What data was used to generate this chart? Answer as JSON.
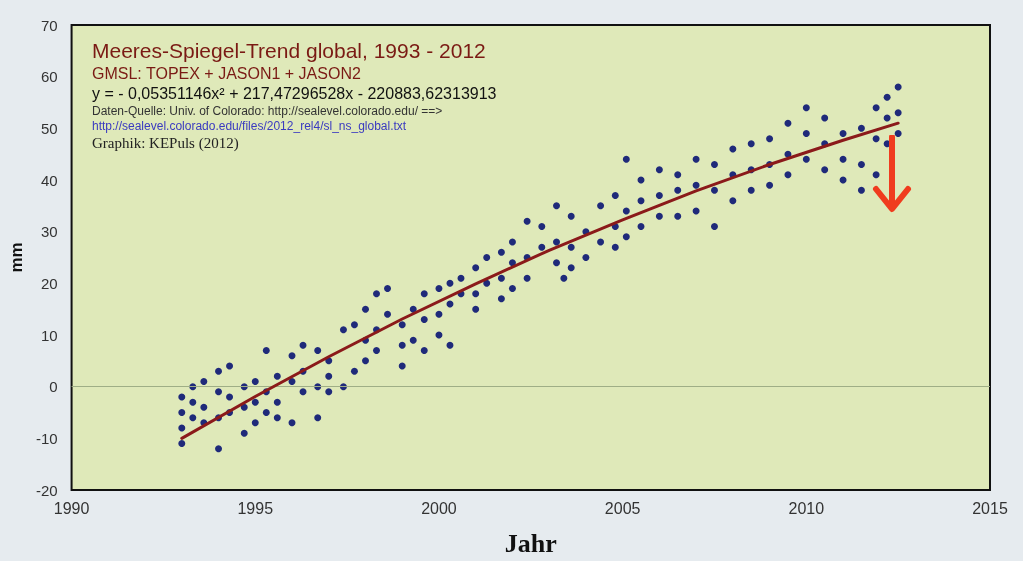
{
  "chart_data": {
    "type": "scatter",
    "title": "Meeres-Spiegel-Trend global, 1993 - 2012",
    "subtitle": "GMSL: TOPEX + JASON1 + JASON2",
    "xlabel": "Jahr",
    "ylabel": "mm",
    "annotations": [
      "y =  - 0,05351146x² + 217,47296528x - 220883,62313913",
      "Daten-Quelle: Univ. of Colorado: http://sealevel.colorado.edu/ ==>",
      "http://sealevel.colorado.edu/files/2012_rel4/sl_ns_global.txt",
      "Graphik: KEPuls (2012)"
    ],
    "xlim": [
      1990,
      2015
    ],
    "xticks": [
      1990,
      1995,
      2000,
      2005,
      2010,
      2015
    ],
    "ylim": [
      -20,
      70
    ],
    "yticks": [
      -20,
      -10,
      0,
      10,
      20,
      30,
      40,
      50,
      60,
      70
    ],
    "ref_lines": [
      {
        "axis": "y",
        "value": 0,
        "color": "#9fae86"
      }
    ],
    "grid": false,
    "marker": "circle",
    "series": [
      {
        "color": "#1f2a7a",
        "x": [
          1993.0,
          1993.0,
          1993.0,
          1993.0,
          1993.3,
          1993.3,
          1993.3,
          1993.6,
          1993.6,
          1993.6,
          1994.0,
          1994.0,
          1994.0,
          1994.0,
          1994.3,
          1994.3,
          1994.3,
          1994.7,
          1994.7,
          1994.7,
          1995.0,
          1995.0,
          1995.0,
          1995.3,
          1995.3,
          1995.3,
          1995.6,
          1995.6,
          1995.6,
          1996.0,
          1996.0,
          1996.0,
          1996.3,
          1996.3,
          1996.3,
          1996.7,
          1996.7,
          1996.7,
          1997.0,
          1997.0,
          1997.0,
          1997.4,
          1997.4,
          1997.7,
          1997.7,
          1998.0,
          1998.0,
          1998.0,
          1998.3,
          1998.3,
          1998.3,
          1998.6,
          1998.6,
          1999.0,
          1999.0,
          1999.0,
          1999.3,
          1999.3,
          1999.6,
          1999.6,
          1999.6,
          2000.0,
          2000.0,
          2000.0,
          2000.3,
          2000.3,
          2000.3,
          2000.6,
          2000.6,
          2001.0,
          2001.0,
          2001.0,
          2001.3,
          2001.3,
          2001.7,
          2001.7,
          2001.7,
          2002.0,
          2002.0,
          2002.0,
          2002.4,
          2002.4,
          2002.4,
          2002.8,
          2002.8,
          2003.2,
          2003.2,
          2003.2,
          2003.4,
          2003.6,
          2003.6,
          2003.6,
          2004.0,
          2004.0,
          2004.4,
          2004.4,
          2004.8,
          2004.8,
          2004.8,
          2005.1,
          2005.1,
          2005.1,
          2005.5,
          2005.5,
          2005.5,
          2006.0,
          2006.0,
          2006.0,
          2006.5,
          2006.5,
          2006.5,
          2007.0,
          2007.0,
          2007.0,
          2007.5,
          2007.5,
          2007.5,
          2008.0,
          2008.0,
          2008.0,
          2008.5,
          2008.5,
          2008.5,
          2009.0,
          2009.0,
          2009.0,
          2009.5,
          2009.5,
          2009.5,
          2010.0,
          2010.0,
          2010.0,
          2010.5,
          2010.5,
          2010.5,
          2011.0,
          2011.0,
          2011.0,
          2011.5,
          2011.5,
          2011.5,
          2011.9,
          2011.9,
          2011.9,
          2012.2,
          2012.2,
          2012.2,
          2012.5,
          2012.5,
          2012.5
        ],
        "values": [
          -11,
          -8,
          -5,
          -2,
          -6,
          0,
          -3,
          1,
          -4,
          -7,
          3,
          -1,
          -6,
          -12,
          4,
          -2,
          -5,
          0,
          -4,
          -9,
          -3,
          -7,
          1,
          7,
          -1,
          -5,
          2,
          -6,
          -3,
          6,
          1,
          -7,
          3,
          8,
          -1,
          7,
          0,
          -6,
          5,
          2,
          -1,
          11,
          0,
          12,
          3,
          15,
          9,
          5,
          18,
          11,
          7,
          19,
          14,
          12,
          8,
          4,
          15,
          9,
          18,
          13,
          7,
          19,
          14,
          10,
          20,
          16,
          8,
          21,
          18,
          23,
          18,
          15,
          25,
          20,
          26,
          21,
          17,
          28,
          24,
          19,
          32,
          25,
          21,
          31,
          27,
          35,
          28,
          24,
          21,
          33,
          27,
          23,
          30,
          25,
          35,
          28,
          37,
          31,
          27,
          44,
          34,
          29,
          40,
          36,
          31,
          42,
          37,
          33,
          41,
          38,
          33,
          44,
          39,
          34,
          43,
          38,
          31,
          46,
          41,
          36,
          47,
          42,
          38,
          48,
          43,
          39,
          51,
          45,
          41,
          54,
          49,
          44,
          52,
          47,
          42,
          49,
          44,
          40,
          50,
          43,
          38,
          54,
          48,
          41,
          56,
          52,
          47,
          58,
          53,
          49
        ]
      },
      {
        "type": "line",
        "color": "#8b1a1a",
        "marker": "none",
        "x": [
          1993,
          1995,
          1997,
          1999,
          2001,
          2003,
          2005,
          2007,
          2009,
          2011,
          2012.5
        ],
        "values": [
          -10,
          -1.9,
          5.8,
          13.1,
          19.9,
          26.4,
          32.3,
          37.9,
          43.0,
          47.7,
          51.0
        ]
      }
    ]
  }
}
